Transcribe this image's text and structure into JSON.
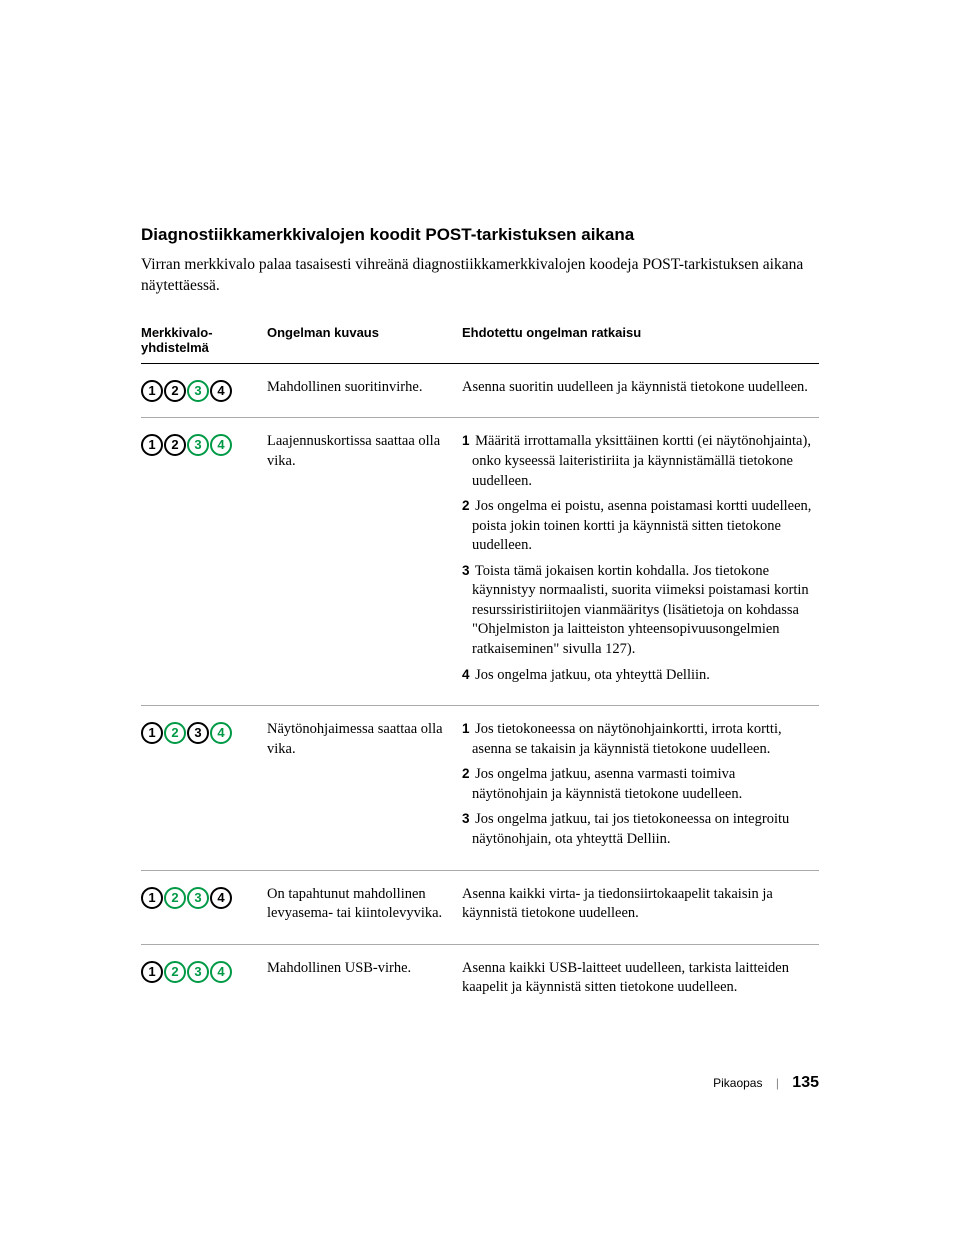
{
  "heading": "Diagnostiikkamerkkivalojen koodit POST-tarkistuksen aikana",
  "intro": "Virran merkkivalo palaa tasaisesti vihreänä diagnostiikkamerkkivalojen koodeja POST-tarkistuksen aikana näytettäessä.",
  "columns": {
    "c0a": "Merkkivalo-",
    "c0b": "yhdistelmä",
    "c1": "Ongelman kuvaus",
    "c2": "Ehdotettu ongelman ratkaisu"
  },
  "led_colors": {
    "on": "#009a46",
    "off": "#000000"
  },
  "rows": [
    {
      "lights": [
        false,
        false,
        true,
        false
      ],
      "desc": "Mahdollinen suoritinvirhe.",
      "steps": [
        {
          "n": "",
          "t": "Asenna suoritin uudelleen ja käynnistä tietokone uudelleen."
        }
      ]
    },
    {
      "lights": [
        false,
        false,
        true,
        true
      ],
      "desc": "Laajennuskortissa saattaa olla vika.",
      "steps": [
        {
          "n": "1",
          "t": "Määritä irrottamalla yksittäinen kortti (ei näytönohjainta), onko kyseessä laiteristiriita ja käynnistämällä tietokone uudelleen."
        },
        {
          "n": "2",
          "t": "Jos ongelma ei poistu, asenna poistamasi kortti uudelleen, poista jokin toinen kortti ja käynnistä sitten tietokone uudelleen."
        },
        {
          "n": "3",
          "t": "Toista tämä jokaisen kortin kohdalla. Jos tietokone käynnistyy normaalisti, suorita viimeksi poistamasi kortin resurssiristiriitojen vianmääritys (lisätietoja on kohdassa \"Ohjelmiston ja laitteiston yhteensopivuusongelmien ratkaiseminen\" sivulla 127)."
        },
        {
          "n": "4",
          "t": "Jos ongelma jatkuu, ota yhteyttä Delliin."
        }
      ]
    },
    {
      "lights": [
        false,
        true,
        false,
        true
      ],
      "desc": "Näytönohjaimessa saattaa olla vika.",
      "steps": [
        {
          "n": "1",
          "t": "Jos tietokoneessa on näytönohjainkortti, irrota kortti, asenna se takaisin ja käynnistä tietokone uudelleen."
        },
        {
          "n": "2",
          "t": "Jos ongelma jatkuu, asenna varmasti toimiva näytönohjain ja käynnistä tietokone uudelleen."
        },
        {
          "n": "3",
          "t": "Jos ongelma jatkuu, tai jos tietokoneessa on integroitu näytönohjain, ota yhteyttä Delliin."
        }
      ]
    },
    {
      "lights": [
        false,
        true,
        true,
        false
      ],
      "desc": "On tapahtunut mahdollinen levyasema- tai kiintolevyvika.",
      "steps": [
        {
          "n": "",
          "t": "Asenna kaikki virta- ja tiedonsiirtokaapelit takaisin ja käynnistä tietokone uudelleen."
        }
      ]
    },
    {
      "lights": [
        false,
        true,
        true,
        true
      ],
      "desc": "Mahdollinen USB-virhe.",
      "steps": [
        {
          "n": "",
          "t": "Asenna kaikki USB-laitteet uudelleen, tarkista laitteiden kaapelit ja käynnistä sitten tietokone uudelleen."
        }
      ]
    }
  ],
  "footer": {
    "label": "Pikaopas",
    "page": "135"
  }
}
